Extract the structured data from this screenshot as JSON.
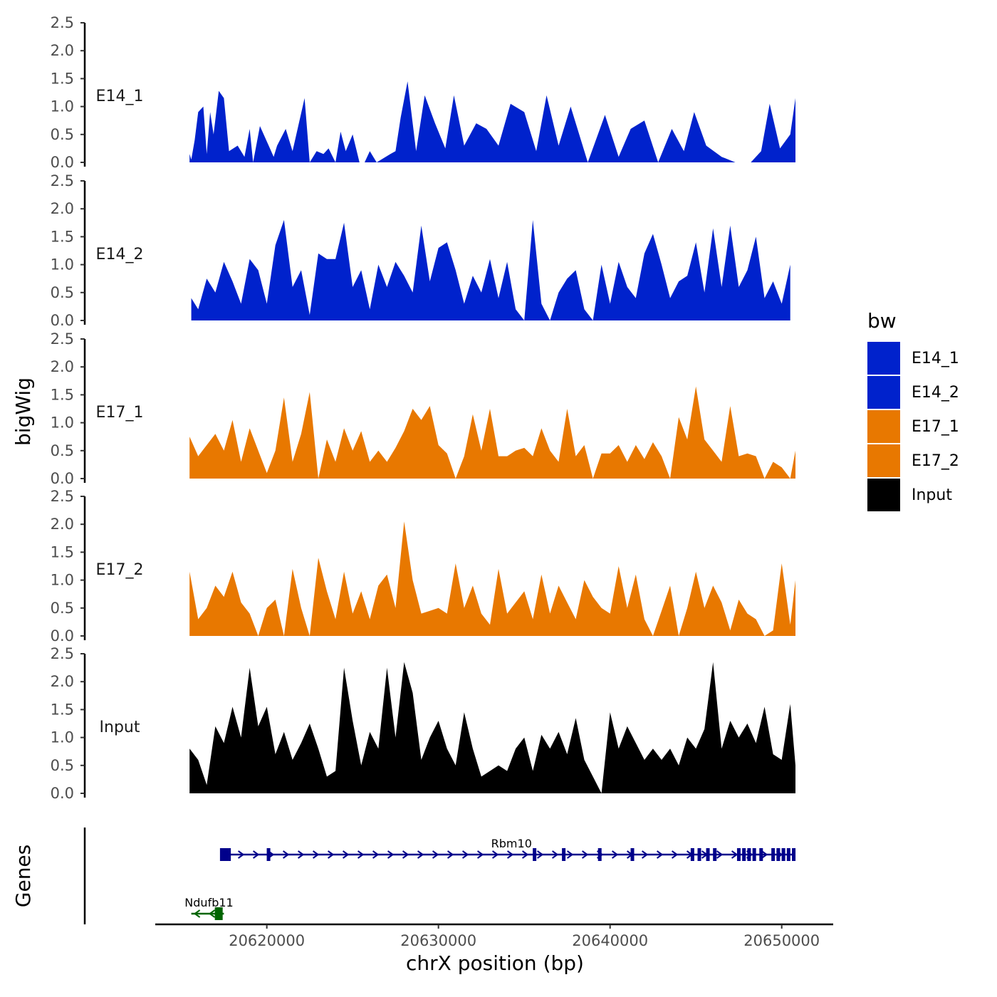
{
  "chart_data": {
    "type": "area",
    "xlabel": "chrX position (bp)",
    "ylabel": "bigWig",
    "genes_label": "Genes",
    "xlim": [
      20613500,
      20653000
    ],
    "x_range_covered": [
      20615500,
      20650800
    ],
    "x_ticks": [
      20620000,
      20630000,
      20640000,
      20650000
    ],
    "x_tick_labels": [
      "20620000",
      "20630000",
      "20640000",
      "20650000"
    ],
    "ylim": [
      0,
      2.5
    ],
    "y_ticks": [
      0,
      0.5,
      1,
      1.5,
      2,
      2.5
    ],
    "y_tick_labels": [
      "0.0",
      "0.5",
      "1.0",
      "1.5",
      "2.0",
      "2.5"
    ],
    "legend": {
      "title": "bw",
      "placement": "right",
      "entries": [
        {
          "name": "E14_1",
          "color": "#0022CC"
        },
        {
          "name": "E14_2",
          "color": "#0022CC"
        },
        {
          "name": "E17_1",
          "color": "#E87800"
        },
        {
          "name": "E17_2",
          "color": "#E87800"
        },
        {
          "name": "Input",
          "color": "#000000"
        }
      ]
    },
    "series": [
      {
        "name": "E14_1",
        "color": "#0022CC",
        "x": [
          20615500,
          20615600,
          20615800,
          20616000,
          20616300,
          20616500,
          20616700,
          20616900,
          20617200,
          20617500,
          20617800,
          20618300,
          20618700,
          20619000,
          20619200,
          20619600,
          20620400,
          20620600,
          20621100,
          20621500,
          20622200,
          20622500,
          20622900,
          20623300,
          20623600,
          20624000,
          20624300,
          20624600,
          20625000,
          20625400,
          20625700,
          20626000,
          20626400,
          20627200,
          20627500,
          20627800,
          20628200,
          20628700,
          20629200,
          20629800,
          20630400,
          20630900,
          20631500,
          20632200,
          20632800,
          20633500,
          20634200,
          20635000,
          20635700,
          20636300,
          20637000,
          20637700,
          20638700,
          20639700,
          20640500,
          20641200,
          20642000,
          20642800,
          20643600,
          20644300,
          20644900,
          20645600,
          20646500,
          20647300,
          20648200,
          20648800,
          20649300,
          20649900,
          20650500,
          20650800
        ],
        "values": [
          0.15,
          0.05,
          0.4,
          0.9,
          1.0,
          0.15,
          0.9,
          0.5,
          1.28,
          1.15,
          0.2,
          0.3,
          0.1,
          0.6,
          0.0,
          0.65,
          0.1,
          0.3,
          0.6,
          0.2,
          1.15,
          0.0,
          0.2,
          0.15,
          0.25,
          0.0,
          0.55,
          0.2,
          0.5,
          0.0,
          0.0,
          0.2,
          0.0,
          0.15,
          0.2,
          0.8,
          1.45,
          0.2,
          1.2,
          0.7,
          0.25,
          1.2,
          0.3,
          0.7,
          0.6,
          0.3,
          1.05,
          0.9,
          0.2,
          1.2,
          0.3,
          1.0,
          0.0,
          0.85,
          0.1,
          0.6,
          0.75,
          0.0,
          0.6,
          0.2,
          0.9,
          0.3,
          0.1,
          0.0,
          0.0,
          0.2,
          1.05,
          0.25,
          0.5,
          1.15
        ]
      },
      {
        "name": "E14_2",
        "color": "#0022CC",
        "x": [
          20615600,
          20616000,
          20616500,
          20617000,
          20617500,
          20618000,
          20618500,
          20619000,
          20619500,
          20620000,
          20620500,
          20621000,
          20621500,
          20622000,
          20622500,
          20623000,
          20623500,
          20624000,
          20624500,
          20625000,
          20625500,
          20626000,
          20626500,
          20627000,
          20627500,
          20628000,
          20628500,
          20629000,
          20629500,
          20630000,
          20630500,
          20631000,
          20631500,
          20632000,
          20632500,
          20633000,
          20633500,
          20634000,
          20634500,
          20635000,
          20635500,
          20636000,
          20636500,
          20637000,
          20637500,
          20638000,
          20638500,
          20639000,
          20639500,
          20640000,
          20640500,
          20641000,
          20641500,
          20642000,
          20642500,
          20643000,
          20643500,
          20644000,
          20644500,
          20645000,
          20645500,
          20646000,
          20646500,
          20647000,
          20647500,
          20648000,
          20648500,
          20649000,
          20649500,
          20650000,
          20650500
        ],
        "values": [
          0.4,
          0.2,
          0.75,
          0.5,
          1.05,
          0.7,
          0.3,
          1.1,
          0.9,
          0.3,
          1.35,
          1.8,
          0.6,
          0.9,
          0.1,
          1.2,
          1.1,
          1.1,
          1.75,
          0.6,
          0.9,
          0.2,
          1.0,
          0.6,
          1.05,
          0.8,
          0.5,
          1.7,
          0.7,
          1.3,
          1.4,
          0.9,
          0.3,
          0.8,
          0.5,
          1.1,
          0.4,
          1.05,
          0.2,
          0.0,
          1.8,
          0.3,
          0.0,
          0.5,
          0.75,
          0.9,
          0.2,
          0.0,
          1.0,
          0.3,
          1.05,
          0.6,
          0.4,
          1.2,
          1.55,
          1.0,
          0.4,
          0.7,
          0.8,
          1.4,
          0.5,
          1.65,
          0.6,
          1.7,
          0.6,
          0.9,
          1.5,
          0.4,
          0.7,
          0.3,
          1.0
        ]
      },
      {
        "name": "E17_1",
        "color": "#E87800",
        "x": [
          20615500,
          20616000,
          20616500,
          20617000,
          20617500,
          20618000,
          20618500,
          20619000,
          20619500,
          20620000,
          20620500,
          20621000,
          20621500,
          20622000,
          20622500,
          20623000,
          20623500,
          20624000,
          20624500,
          20625000,
          20625500,
          20626000,
          20626500,
          20627000,
          20627500,
          20628000,
          20628500,
          20629000,
          20629500,
          20630000,
          20630500,
          20631000,
          20631500,
          20632000,
          20632500,
          20633000,
          20633500,
          20634000,
          20634500,
          20635000,
          20635500,
          20636000,
          20636500,
          20637000,
          20637500,
          20638000,
          20638500,
          20639000,
          20639500,
          20640000,
          20640500,
          20641000,
          20641500,
          20642000,
          20642500,
          20643000,
          20643500,
          20644000,
          20644500,
          20645000,
          20645500,
          20646000,
          20646500,
          20647000,
          20647500,
          20648000,
          20648500,
          20649000,
          20649500,
          20650000,
          20650500,
          20650800
        ],
        "values": [
          0.75,
          0.4,
          0.6,
          0.8,
          0.5,
          1.05,
          0.3,
          0.9,
          0.5,
          0.1,
          0.5,
          1.45,
          0.3,
          0.8,
          1.55,
          0.0,
          0.7,
          0.3,
          0.9,
          0.5,
          0.85,
          0.3,
          0.5,
          0.3,
          0.55,
          0.85,
          1.25,
          1.05,
          1.3,
          0.6,
          0.45,
          0.0,
          0.4,
          1.15,
          0.5,
          1.25,
          0.4,
          0.4,
          0.5,
          0.55,
          0.4,
          0.9,
          0.5,
          0.3,
          1.25,
          0.4,
          0.6,
          0.0,
          0.45,
          0.45,
          0.6,
          0.3,
          0.6,
          0.35,
          0.65,
          0.4,
          0.0,
          1.1,
          0.7,
          1.65,
          0.7,
          0.5,
          0.3,
          1.3,
          0.4,
          0.45,
          0.4,
          0.0,
          0.3,
          0.2,
          0.0,
          0.5
        ]
      },
      {
        "name": "E17_2",
        "color": "#E87800",
        "x": [
          20615500,
          20616000,
          20616500,
          20617000,
          20617500,
          20618000,
          20618500,
          20619000,
          20619500,
          20620000,
          20620500,
          20621000,
          20621500,
          20622000,
          20622500,
          20623000,
          20623500,
          20624000,
          20624500,
          20625000,
          20625500,
          20626000,
          20626500,
          20627000,
          20627500,
          20628000,
          20628500,
          20629000,
          20629500,
          20630000,
          20630500,
          20631000,
          20631500,
          20632000,
          20632500,
          20633000,
          20633500,
          20634000,
          20634500,
          20635000,
          20635500,
          20636000,
          20636500,
          20637000,
          20637500,
          20638000,
          20638500,
          20639000,
          20639500,
          20640000,
          20640500,
          20641000,
          20641500,
          20642000,
          20642500,
          20643000,
          20643500,
          20644000,
          20644500,
          20645000,
          20645500,
          20646000,
          20646500,
          20647000,
          20647500,
          20648000,
          20648500,
          20649000,
          20649500,
          20650000,
          20650500,
          20650800
        ],
        "values": [
          1.15,
          0.3,
          0.5,
          0.9,
          0.7,
          1.15,
          0.6,
          0.4,
          0.0,
          0.5,
          0.65,
          0.0,
          1.2,
          0.5,
          0.0,
          1.4,
          0.8,
          0.3,
          1.15,
          0.4,
          0.8,
          0.3,
          0.9,
          1.1,
          0.5,
          2.05,
          1.0,
          0.4,
          0.45,
          0.5,
          0.4,
          1.3,
          0.5,
          0.9,
          0.4,
          0.2,
          1.2,
          0.4,
          0.6,
          0.8,
          0.3,
          1.1,
          0.4,
          0.9,
          0.6,
          0.3,
          1.0,
          0.7,
          0.5,
          0.4,
          1.25,
          0.5,
          1.1,
          0.3,
          0.0,
          0.45,
          0.9,
          0.0,
          0.5,
          1.15,
          0.5,
          0.9,
          0.6,
          0.1,
          0.65,
          0.4,
          0.3,
          0.0,
          0.1,
          1.3,
          0.2,
          1.0
        ]
      },
      {
        "name": "Input",
        "color": "#000000",
        "x": [
          20615500,
          20616000,
          20616500,
          20617000,
          20617500,
          20618000,
          20618500,
          20619000,
          20619500,
          20620000,
          20620500,
          20621000,
          20621500,
          20622000,
          20622500,
          20623000,
          20623500,
          20624000,
          20624500,
          20625000,
          20625500,
          20626000,
          20626500,
          20627000,
          20627500,
          20628000,
          20628500,
          20629000,
          20629500,
          20630000,
          20630500,
          20631000,
          20631500,
          20632000,
          20632500,
          20633000,
          20633500,
          20634000,
          20634500,
          20635000,
          20635500,
          20636000,
          20636500,
          20637000,
          20637500,
          20638000,
          20638500,
          20639000,
          20639500,
          20640000,
          20640500,
          20641000,
          20641500,
          20642000,
          20642500,
          20643000,
          20643500,
          20644000,
          20644500,
          20645000,
          20645500,
          20646000,
          20646500,
          20647000,
          20647500,
          20648000,
          20648500,
          20649000,
          20649500,
          20650000,
          20650500,
          20650800
        ],
        "values": [
          0.8,
          0.6,
          0.15,
          1.2,
          0.9,
          1.55,
          1.0,
          2.25,
          1.2,
          1.55,
          0.7,
          1.1,
          0.6,
          0.9,
          1.25,
          0.8,
          0.3,
          0.4,
          2.25,
          1.3,
          0.5,
          1.1,
          0.8,
          2.25,
          1.0,
          2.35,
          1.8,
          0.6,
          1.0,
          1.3,
          0.8,
          0.5,
          1.45,
          0.8,
          0.3,
          0.4,
          0.5,
          0.4,
          0.8,
          1.0,
          0.4,
          1.05,
          0.8,
          1.1,
          0.7,
          1.35,
          0.6,
          0.3,
          0.0,
          1.45,
          0.8,
          1.2,
          0.9,
          0.6,
          0.8,
          0.6,
          0.8,
          0.5,
          1.0,
          0.8,
          1.15,
          2.35,
          0.8,
          1.3,
          1.0,
          1.25,
          0.9,
          1.55,
          0.7,
          0.6,
          1.6,
          0.5
        ]
      }
    ],
    "genes": [
      {
        "name": "Rbm10",
        "color": "#00008B",
        "strand": "+",
        "start": 20617300,
        "end": 20650800,
        "exons": [
          20617500,
          20617800,
          20620100,
          20635600,
          20637300,
          20639400,
          20641300,
          20644800,
          20645200,
          20645700,
          20646100,
          20647500,
          20647800,
          20648100,
          20648400,
          20648800,
          20649500,
          20649800,
          20650100,
          20650400,
          20650700
        ]
      },
      {
        "name": "Ndufb11",
        "color": "#006400",
        "strand": "-",
        "start": 20615600,
        "end": 20617500,
        "exons": [
          20617200
        ]
      }
    ]
  }
}
